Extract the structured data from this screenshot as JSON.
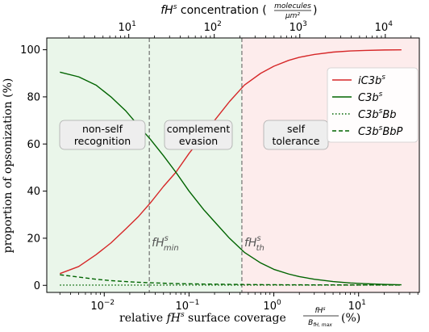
{
  "chart_data": {
    "type": "line",
    "top_axis": {
      "label_main": "fH",
      "label_sup": "s",
      "label_rest": " concentration (",
      "label_frac_num": "molecules",
      "label_frac_den": "μm²",
      "label_close": ")",
      "ticks": [
        {
          "value": 10,
          "label": "10",
          "sup": "1"
        },
        {
          "value": 100,
          "label": "10",
          "sup": "2"
        },
        {
          "value": 1000,
          "label": "10",
          "sup": "3"
        },
        {
          "value": 10000,
          "label": "10",
          "sup": "4"
        }
      ],
      "range": [
        1.1,
        25000
      ]
    },
    "x_axis": {
      "scale": "log",
      "range": [
        0.0021,
        52
      ],
      "label_pre": "relative ",
      "label_fh": "fH",
      "label_sup": "s",
      "label_mid": " surface coverage ",
      "label_frac_num": "fH",
      "label_frac_num_sup": "s",
      "label_frac_den": "B",
      "label_frac_den_sub": "fH, max",
      "label_post": " (%)",
      "ticks": [
        {
          "value": 0.01,
          "label": "10",
          "sup": "−2"
        },
        {
          "value": 0.1,
          "label": "10",
          "sup": "−1"
        },
        {
          "value": 1,
          "label": "10",
          "sup": "0"
        },
        {
          "value": 10,
          "label": "10",
          "sup": "1"
        }
      ]
    },
    "y_axis": {
      "label": "proportion of opsonization (%)",
      "range": [
        -3,
        105
      ],
      "ticks": [
        0,
        20,
        40,
        60,
        80,
        100
      ]
    },
    "x": [
      0.003,
      0.005,
      0.008,
      0.012,
      0.018,
      0.025,
      0.035,
      0.05,
      0.07,
      0.1,
      0.15,
      0.2,
      0.3,
      0.45,
      0.7,
      1,
      1.5,
      2,
      3,
      5,
      8,
      12,
      20,
      32
    ],
    "series": [
      {
        "name": "iC3b",
        "sup": "s",
        "color": "#d62728",
        "dash": "solid",
        "values": [
          5,
          8,
          13,
          18,
          24,
          29,
          35,
          42,
          48,
          56,
          64,
          70,
          78,
          85,
          90,
          93,
          95.5,
          96.8,
          98,
          99,
          99.5,
          99.7,
          99.9,
          99.95
        ]
      },
      {
        "name": "C3b",
        "sup": "s",
        "color": "#006400",
        "dash": "solid",
        "values": [
          90.5,
          88.5,
          85,
          80,
          74,
          68,
          62,
          55,
          48,
          40,
          32,
          27,
          20,
          14,
          9.5,
          6.8,
          4.8,
          3.7,
          2.6,
          1.6,
          1.0,
          0.7,
          0.4,
          0.25
        ]
      },
      {
        "name": "C3bBb",
        "name_pre": "C3b",
        "sup": "s",
        "name_post": "Bb",
        "color": "#006400",
        "dash": "dotted",
        "values": [
          0.1,
          0.1,
          0.1,
          0.1,
          0.1,
          0.1,
          0.1,
          0.1,
          0.1,
          0.1,
          0.1,
          0.1,
          0.1,
          0.1,
          0.1,
          0.1,
          0.1,
          0.1,
          0.1,
          0.1,
          0.1,
          0.1,
          0.1,
          0.1
        ]
      },
      {
        "name": "C3bBbP",
        "name_pre": "C3b",
        "sup": "s",
        "name_post": "BbP",
        "color": "#006400",
        "dash": "dashed",
        "values": [
          4.5,
          3.5,
          2.6,
          2.0,
          1.6,
          1.3,
          1.1,
          0.9,
          0.75,
          0.65,
          0.55,
          0.5,
          0.42,
          0.36,
          0.3,
          0.27,
          0.24,
          0.22,
          0.2,
          0.18,
          0.17,
          0.16,
          0.15,
          0.15
        ]
      }
    ],
    "regions": [
      {
        "label_lines": [
          "non-self",
          "recognition"
        ],
        "x_from": 0.0021,
        "x_to": 0.034,
        "color": "#eaf6ea"
      },
      {
        "label_lines": [
          "complement",
          "evasion"
        ],
        "x_from": 0.034,
        "x_to": 0.42,
        "color": "#eaf6ea"
      },
      {
        "label_lines": [
          "self",
          "tolerance"
        ],
        "x_from": 0.42,
        "x_to": 52,
        "color": "#fdecec"
      }
    ],
    "thresholds": [
      {
        "x": 0.034,
        "label_main": "fH",
        "label_sup": "s",
        "label_sub": "min"
      },
      {
        "x": 0.42,
        "label_main": "fH",
        "label_sup": "s",
        "label_sub": "th"
      }
    ],
    "legend": {
      "position": "top-right"
    },
    "grid": false
  }
}
